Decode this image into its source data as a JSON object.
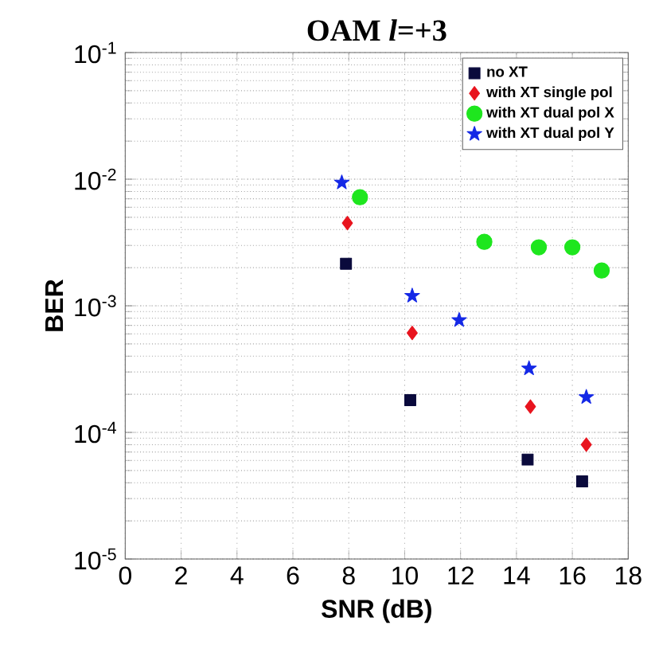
{
  "chart_data": {
    "type": "scatter",
    "title": "OAM *l*=+3",
    "xlabel": "SNR (dB)",
    "ylabel": "BER",
    "log": "y",
    "grid": true,
    "legend": "top right",
    "xlim": [
      0,
      18
    ],
    "xticks": [
      0,
      2,
      4,
      6,
      8,
      10,
      12,
      14,
      16,
      18
    ],
    "ylim": [
      1e-05,
      0.1
    ],
    "yticks": [
      {
        "value": 1e-05,
        "label": "10$^{-5}$"
      },
      {
        "value": 0.0001,
        "label": "10$^{-4}$"
      },
      {
        "value": 0.001,
        "label": "10$^{-3}$"
      },
      {
        "value": 0.01,
        "label": "10$^{-2}$"
      },
      {
        "value": 0.1,
        "label": "10$^{-1}$"
      }
    ],
    "series": [
      {
        "name": "no XT",
        "color": "#0a0a3c",
        "marker": "square",
        "x": [
          7.9,
          10.2,
          14.4,
          16.35
        ],
        "values": [
          0.00215,
          0.00018,
          6.1e-05,
          4.1e-05
        ]
      },
      {
        "name": "with XT single pol",
        "color": "#e8141e",
        "marker": "diamond",
        "x": [
          7.95,
          10.27,
          14.5,
          16.5
        ],
        "values": [
          0.0045,
          0.00061,
          0.00016,
          8e-05
        ]
      },
      {
        "name": "with XT dual pol X",
        "color": "#1ee61e",
        "marker": "circle",
        "x": [
          8.4,
          12.85,
          14.8,
          16.0,
          17.05
        ],
        "values": [
          0.0072,
          0.0032,
          0.0029,
          0.0029,
          0.0019
        ]
      },
      {
        "name": "with XT dual pol Y",
        "color": "#1428e6",
        "marker": "star",
        "x": [
          7.75,
          10.27,
          11.95,
          14.45,
          16.5
        ],
        "values": [
          0.0094,
          0.0012,
          0.00077,
          0.00032,
          0.00019
        ]
      }
    ]
  }
}
